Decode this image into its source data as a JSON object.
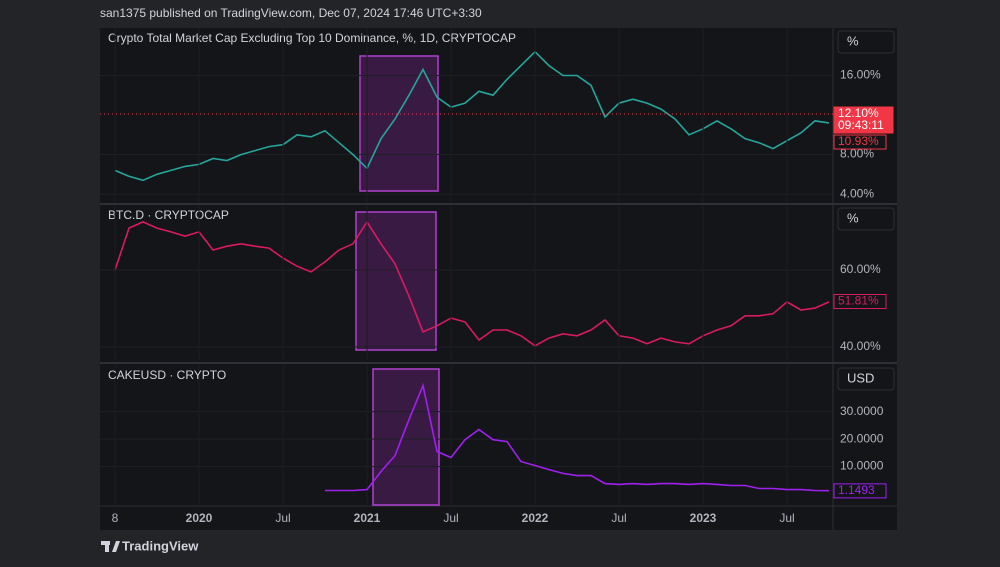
{
  "header": "san1375 published on TradingView.com, Dec 07, 2024 17:46 UTC+3:30",
  "footer": "TradingView",
  "chart_data": [
    {
      "type": "line",
      "title": "Crypto Total Market Cap Excluding Top 10 Dominance, %, 1D, CRYPTOCAP",
      "scale_unit": "%",
      "color": "#26a69a",
      "x": [
        "2019-07",
        "2019-08",
        "2019-09",
        "2019-10",
        "2019-11",
        "2019-12",
        "2020-01",
        "2020-02",
        "2020-03",
        "2020-04",
        "2020-05",
        "2020-06",
        "2020-07",
        "2020-08",
        "2020-09",
        "2020-10",
        "2020-11",
        "2020-12",
        "2021-01",
        "2021-02",
        "2021-03",
        "2021-04",
        "2021-05",
        "2021-06",
        "2021-07",
        "2021-08",
        "2021-09",
        "2021-10",
        "2021-11",
        "2021-12",
        "2022-01",
        "2022-02",
        "2022-03",
        "2022-04",
        "2022-05",
        "2022-06",
        "2022-07",
        "2022-08",
        "2022-09",
        "2022-10",
        "2022-11",
        "2022-12",
        "2023-01",
        "2023-02",
        "2023-03",
        "2023-04",
        "2023-05",
        "2023-06",
        "2023-07",
        "2023-08",
        "2023-09",
        "2023-10"
      ],
      "values": [
        6.4,
        5.8,
        5.4,
        6.0,
        6.4,
        6.8,
        7.0,
        7.6,
        7.4,
        8.0,
        8.4,
        8.8,
        9.0,
        10.0,
        9.8,
        10.4,
        9.2,
        8.0,
        6.6,
        9.6,
        11.6,
        14.0,
        16.6,
        13.8,
        12.8,
        13.2,
        14.4,
        14.0,
        15.6,
        17.0,
        18.4,
        17.0,
        16.0,
        16.0,
        15.0,
        11.8,
        13.2,
        13.6,
        13.2,
        12.6,
        11.6,
        10.0,
        10.6,
        11.4,
        10.6,
        9.6,
        9.2,
        8.6,
        9.4,
        10.2,
        11.4,
        11.2
      ],
      "xlim": [
        "2019-06",
        "2023-10"
      ],
      "ylim": [
        3.1,
        20.8
      ],
      "yticks": [
        {
          "value": 4,
          "label": "4.00%"
        },
        {
          "value": 8,
          "label": "8.00%"
        },
        {
          "value": 16,
          "label": "16.00%"
        }
      ],
      "price_labels": [
        {
          "value": 12.1,
          "label": "12.10%",
          "countdown": "09:43:11",
          "color": "#f23645",
          "style": "filled"
        },
        {
          "value": 10.93,
          "label": "10.93%",
          "color": "#f23645",
          "style": "outline"
        }
      ]
    },
    {
      "type": "line",
      "title": "BTC.D · CRYPTOCAP",
      "scale_unit": "%",
      "color": "#d81b60",
      "x": [
        "2019-07",
        "2019-08",
        "2019-09",
        "2019-10",
        "2019-11",
        "2019-12",
        "2020-01",
        "2020-02",
        "2020-03",
        "2020-04",
        "2020-05",
        "2020-06",
        "2020-07",
        "2020-08",
        "2020-09",
        "2020-10",
        "2020-11",
        "2020-12",
        "2021-01",
        "2021-02",
        "2021-03",
        "2021-04",
        "2021-05",
        "2021-06",
        "2021-07",
        "2021-08",
        "2021-09",
        "2021-10",
        "2021-11",
        "2021-12",
        "2022-01",
        "2022-02",
        "2022-03",
        "2022-04",
        "2022-05",
        "2022-06",
        "2022-07",
        "2022-08",
        "2022-09",
        "2022-10",
        "2022-11",
        "2022-12",
        "2023-01",
        "2023-02",
        "2023-03",
        "2023-04",
        "2023-05",
        "2023-06",
        "2023-07",
        "2023-08",
        "2023-09",
        "2023-10"
      ],
      "values": [
        60.0,
        70.9,
        72.5,
        70.9,
        69.9,
        68.8,
        69.9,
        65.2,
        66.2,
        66.8,
        66.2,
        65.7,
        63.1,
        61.0,
        59.5,
        62.1,
        65.2,
        66.8,
        72.5,
        66.8,
        61.6,
        53.2,
        43.9,
        45.5,
        47.5,
        46.5,
        41.8,
        44.4,
        44.4,
        42.9,
        40.3,
        42.3,
        43.4,
        42.9,
        44.4,
        47.0,
        42.9,
        42.3,
        40.8,
        42.3,
        41.3,
        40.8,
        42.9,
        44.4,
        45.5,
        48.1,
        48.1,
        48.6,
        51.7,
        49.6,
        50.1,
        51.7
      ],
      "xlim": [
        "2019-06",
        "2023-10"
      ],
      "ylim": [
        36.6,
        76.9
      ],
      "yticks": [
        {
          "value": 40,
          "label": "40.00%"
        },
        {
          "value": 60,
          "label": "60.00%"
        }
      ],
      "price_labels": [
        {
          "value": 51.81,
          "label": "51.81%",
          "color": "#d81b60",
          "style": "outline"
        }
      ]
    },
    {
      "type": "line",
      "title": "CAKEUSD · CRYPTO",
      "scale_unit": "USD",
      "color": "#a020f0",
      "x": [
        "2019-07",
        "2019-08",
        "2019-09",
        "2019-10",
        "2019-11",
        "2019-12",
        "2020-01",
        "2020-02",
        "2020-03",
        "2020-04",
        "2020-05",
        "2020-06",
        "2020-07",
        "2020-08",
        "2020-09",
        "2020-10",
        "2020-11",
        "2020-12",
        "2021-01",
        "2021-02",
        "2021-03",
        "2021-04",
        "2021-05",
        "2021-06",
        "2021-07",
        "2021-08",
        "2021-09",
        "2021-10",
        "2021-11",
        "2021-12",
        "2022-01",
        "2022-02",
        "2022-03",
        "2022-04",
        "2022-05",
        "2022-06",
        "2022-07",
        "2022-08",
        "2022-09",
        "2022-10",
        "2022-11",
        "2022-12",
        "2023-01",
        "2023-02",
        "2023-03",
        "2023-04",
        "2023-05",
        "2023-06",
        "2023-07",
        "2023-08",
        "2023-09",
        "2023-10"
      ],
      "values": [
        null,
        null,
        null,
        null,
        null,
        null,
        null,
        null,
        null,
        null,
        null,
        null,
        null,
        null,
        null,
        1.3,
        1.3,
        1.3,
        1.6,
        8.2,
        14.0,
        27.1,
        39.5,
        15.5,
        13.3,
        19.8,
        23.5,
        19.8,
        19.1,
        11.8,
        10.4,
        8.9,
        7.5,
        6.7,
        6.7,
        3.8,
        3.5,
        3.8,
        3.5,
        3.8,
        3.8,
        3.5,
        3.8,
        3.5,
        3.1,
        3.1,
        2.0,
        2.0,
        1.6,
        1.6,
        1.3,
        1.2
      ],
      "xlim": [
        "2019-06",
        "2023-10"
      ],
      "ylim": [
        -4,
        47
      ],
      "yticks": [
        {
          "value": 10,
          "label": "10.0000"
        },
        {
          "value": 20,
          "label": "20.0000"
        },
        {
          "value": 30,
          "label": "30.0000"
        }
      ],
      "xticks": [
        {
          "value": "2019-07",
          "label": "8"
        },
        {
          "value": "2020-01",
          "label": "2020"
        },
        {
          "value": "2020-07",
          "label": "Jul"
        },
        {
          "value": "2021-01",
          "label": "2021"
        },
        {
          "value": "2021-07",
          "label": "Jul"
        },
        {
          "value": "2022-01",
          "label": "2022"
        },
        {
          "value": "2022-07",
          "label": "Jul"
        },
        {
          "value": "2023-01",
          "label": "2023"
        },
        {
          "value": "2023-07",
          "label": "Jul"
        }
      ],
      "price_labels": [
        {
          "value": 1.1493,
          "label": "1.1493",
          "color": "#a020f0",
          "style": "outline"
        }
      ]
    }
  ]
}
